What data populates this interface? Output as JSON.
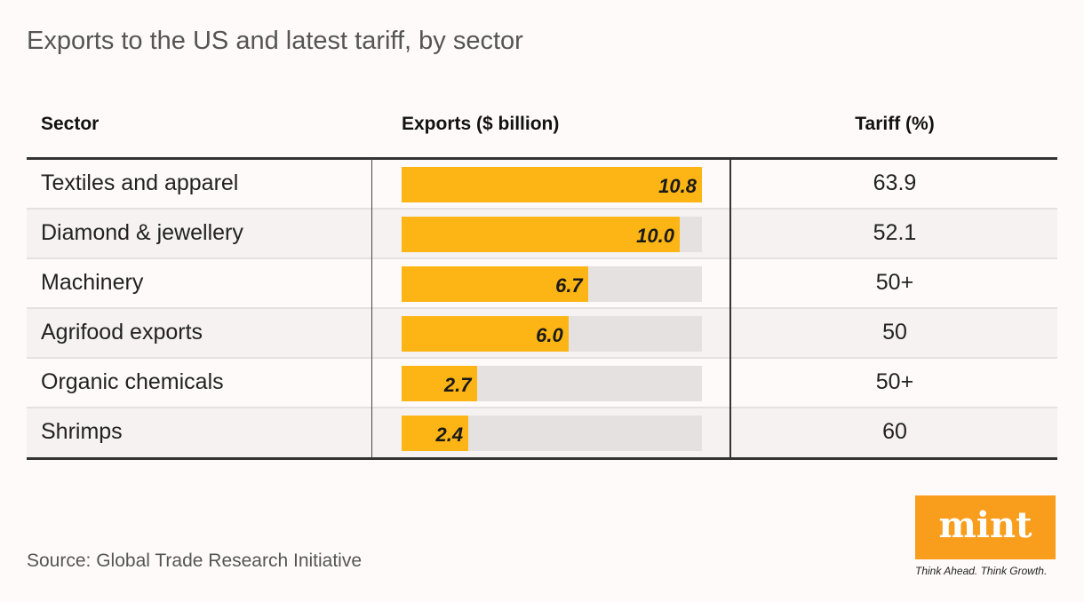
{
  "title": "Exports to the US and latest tariff, by sector",
  "headers": {
    "sector": "Sector",
    "exports": "Exports ($ billion)",
    "tariff": "Tariff (%)"
  },
  "chart_data": {
    "type": "table",
    "title": "Exports to the US and latest tariff, by sector",
    "columns": [
      "Sector",
      "Exports ($ billion)",
      "Tariff (%)"
    ],
    "rows": [
      {
        "sector": "Textiles and apparel",
        "exports": 10.8,
        "exports_label": "10.8",
        "tariff": "63.9"
      },
      {
        "sector": "Diamond & jewellery",
        "exports": 10.0,
        "exports_label": "10.0",
        "tariff": "52.1"
      },
      {
        "sector": "Machinery",
        "exports": 6.7,
        "exports_label": "6.7",
        "tariff": "50+"
      },
      {
        "sector": "Agrifood exports",
        "exports": 6.0,
        "exports_label": "6.0",
        "tariff": "50"
      },
      {
        "sector": "Organic chemicals",
        "exports": 2.7,
        "exports_label": "2.7",
        "tariff": "50+"
      },
      {
        "sector": "Shrimps",
        "exports": 2.4,
        "exports_label": "2.4",
        "tariff": "60"
      }
    ],
    "bar_max": 10.8,
    "bar_color": "#fdb515",
    "track_color": "#e6e1e1"
  },
  "source": "Source: Global Trade Research Initiative",
  "logo": {
    "text": "mint",
    "tagline": "Think Ahead. Think Growth.",
    "color": "#f99d1c"
  }
}
